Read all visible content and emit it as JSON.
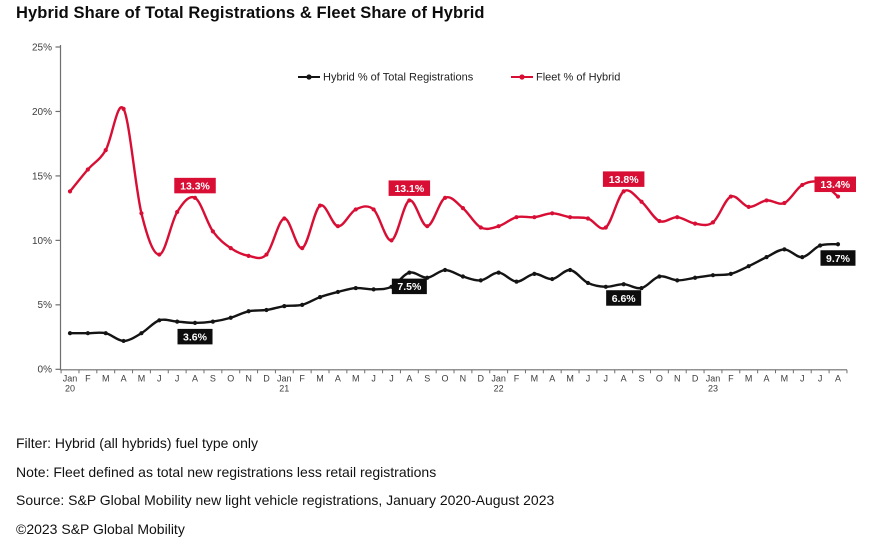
{
  "title": "Hybrid Share of Total Registrations & Fleet Share of Hybrid",
  "footer": {
    "filter": "Filter: Hybrid (all hybrids) fuel type only",
    "note": "Note: Fleet defined as total new registrations less retail registrations",
    "source": "Source: S&P Global Mobility new light vehicle registrations, January 2020-August 2023",
    "copyright": "©2023 S&P Global Mobility"
  },
  "chart_data": {
    "type": "line",
    "title": "Hybrid Share of Total Registrations & Fleet Share of Hybrid",
    "xlabel": "",
    "ylabel": "",
    "ylim": [
      0,
      25
    ],
    "y_ticks": [
      "0%",
      "5%",
      "10%",
      "15%",
      "20%",
      "25%"
    ],
    "grid": false,
    "legend_position": "top-center",
    "x": [
      {
        "m": "Jan",
        "y": "20"
      },
      {
        "m": "F"
      },
      {
        "m": "M"
      },
      {
        "m": "A"
      },
      {
        "m": "M"
      },
      {
        "m": "J"
      },
      {
        "m": "J"
      },
      {
        "m": "A"
      },
      {
        "m": "S"
      },
      {
        "m": "O"
      },
      {
        "m": "N"
      },
      {
        "m": "D"
      },
      {
        "m": "Jan",
        "y": "21"
      },
      {
        "m": "F"
      },
      {
        "m": "M"
      },
      {
        "m": "A"
      },
      {
        "m": "M"
      },
      {
        "m": "J"
      },
      {
        "m": "J"
      },
      {
        "m": "A"
      },
      {
        "m": "S"
      },
      {
        "m": "O"
      },
      {
        "m": "N"
      },
      {
        "m": "D"
      },
      {
        "m": "Jan",
        "y": "22"
      },
      {
        "m": "F"
      },
      {
        "m": "M"
      },
      {
        "m": "A"
      },
      {
        "m": "M"
      },
      {
        "m": "J"
      },
      {
        "m": "J"
      },
      {
        "m": "A"
      },
      {
        "m": "S"
      },
      {
        "m": "O"
      },
      {
        "m": "N"
      },
      {
        "m": "D"
      },
      {
        "m": "Jan",
        "y": "23"
      },
      {
        "m": "F"
      },
      {
        "m": "M"
      },
      {
        "m": "A"
      },
      {
        "m": "M"
      },
      {
        "m": "J"
      },
      {
        "m": "J"
      },
      {
        "m": "A"
      }
    ],
    "series": [
      {
        "name": "Hybrid % of Total Registrations",
        "color": "#141414",
        "values": [
          2.8,
          2.8,
          2.8,
          2.2,
          2.8,
          3.8,
          3.7,
          3.6,
          3.7,
          4.0,
          4.5,
          4.6,
          4.9,
          5.0,
          5.6,
          6.0,
          6.3,
          6.2,
          6.4,
          7.5,
          7.1,
          7.7,
          7.2,
          6.9,
          7.5,
          6.8,
          7.4,
          7.0,
          7.7,
          6.7,
          6.4,
          6.6,
          6.3,
          7.2,
          6.9,
          7.1,
          7.3,
          7.4,
          8.0,
          8.7,
          9.3,
          8.7,
          9.6,
          9.7
        ]
      },
      {
        "name": "Fleet % of Hybrid",
        "color": "#d80e35",
        "values": [
          13.8,
          15.5,
          17.0,
          20.2,
          12.1,
          8.9,
          12.2,
          13.3,
          10.7,
          9.4,
          8.8,
          8.9,
          11.7,
          9.4,
          12.7,
          11.1,
          12.4,
          12.4,
          10.0,
          13.1,
          11.1,
          13.3,
          12.5,
          11.0,
          11.1,
          11.8,
          11.8,
          12.1,
          11.8,
          11.7,
          11.0,
          13.8,
          13.0,
          11.5,
          11.8,
          11.3,
          11.4,
          13.4,
          12.6,
          13.1,
          12.9,
          14.3,
          14.5,
          13.4
        ]
      }
    ],
    "annotations": [
      {
        "series": 1,
        "index": 7,
        "label": "13.3%"
      },
      {
        "series": 1,
        "index": 19,
        "label": "13.1%"
      },
      {
        "series": 1,
        "index": 31,
        "label": "13.8%"
      },
      {
        "series": 1,
        "index": 43,
        "label": "13.4%"
      },
      {
        "series": 0,
        "index": 7,
        "label": "3.6%"
      },
      {
        "series": 0,
        "index": 19,
        "label": "7.5%"
      },
      {
        "series": 0,
        "index": 31,
        "label": "6.6%"
      },
      {
        "series": 0,
        "index": 43,
        "label": "9.7%"
      }
    ]
  }
}
